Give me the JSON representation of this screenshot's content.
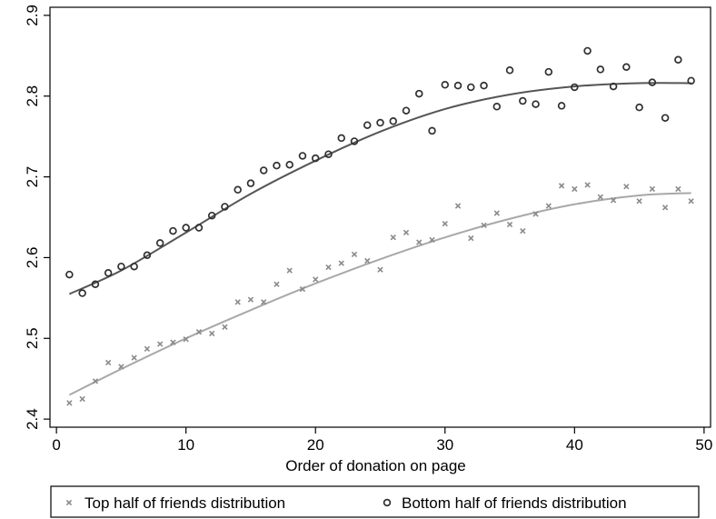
{
  "chart_data": {
    "type": "scatter",
    "xlabel": "Order of donation on page",
    "ylabel": "",
    "xlim": [
      -0.5,
      50.5
    ],
    "ylim": [
      2.39,
      2.91
    ],
    "x_ticks": [
      0,
      10,
      20,
      30,
      40,
      50
    ],
    "y_ticks": [
      2.4,
      2.5,
      2.6,
      2.7,
      2.8,
      2.9
    ],
    "x_tick_labels": [
      "0",
      "10",
      "20",
      "30",
      "40",
      "50"
    ],
    "y_tick_labels": [
      "2.4",
      "2.5",
      "2.6",
      "2.7",
      "2.8",
      "2.9"
    ],
    "grid": false,
    "legend_position": "bottom",
    "series": [
      {
        "name": "Top half of friends distribution",
        "marker": "x",
        "color": "#8a8a8a",
        "fit_color": "#a8a8a8",
        "x": [
          1,
          2,
          3,
          4,
          5,
          6,
          7,
          8,
          9,
          10,
          11,
          12,
          13,
          14,
          15,
          16,
          17,
          18,
          19,
          20,
          21,
          22,
          23,
          24,
          25,
          26,
          27,
          28,
          29,
          30,
          31,
          32,
          33,
          34,
          35,
          36,
          37,
          38,
          39,
          40,
          41,
          42,
          43,
          44,
          45,
          46,
          47,
          48,
          49
        ],
        "values": [
          2.42,
          2.425,
          2.447,
          2.47,
          2.465,
          2.476,
          2.487,
          2.493,
          2.495,
          2.499,
          2.508,
          2.506,
          2.514,
          2.545,
          2.548,
          2.545,
          2.567,
          2.584,
          2.561,
          2.573,
          2.588,
          2.593,
          2.604,
          2.596,
          2.585,
          2.625,
          2.631,
          2.619,
          2.622,
          2.642,
          2.664,
          2.624,
          2.64,
          2.655,
          2.641,
          2.633,
          2.654,
          2.664,
          2.689,
          2.685,
          2.69,
          2.675,
          2.671,
          2.688,
          2.67,
          2.685,
          2.662,
          2.685,
          2.67
        ],
        "fit_x": [
          1,
          5,
          10,
          15,
          20,
          25,
          30,
          35,
          40,
          45,
          49
        ],
        "fit_values": [
          2.43,
          2.462,
          2.5,
          2.535,
          2.568,
          2.598,
          2.625,
          2.648,
          2.666,
          2.677,
          2.68
        ]
      },
      {
        "name": "Bottom half of friends distribution",
        "marker": "o",
        "color": "#303030",
        "fit_color": "#555555",
        "x": [
          1,
          2,
          3,
          4,
          5,
          6,
          7,
          8,
          9,
          10,
          11,
          12,
          13,
          14,
          15,
          16,
          17,
          18,
          19,
          20,
          21,
          22,
          23,
          24,
          25,
          26,
          27,
          28,
          29,
          30,
          31,
          32,
          33,
          34,
          35,
          36,
          37,
          38,
          39,
          40,
          41,
          42,
          43,
          44,
          45,
          46,
          47,
          48,
          49
        ],
        "values": [
          2.579,
          2.556,
          2.567,
          2.581,
          2.589,
          2.589,
          2.603,
          2.618,
          2.633,
          2.637,
          2.637,
          2.652,
          2.663,
          2.684,
          2.692,
          2.708,
          2.714,
          2.715,
          2.726,
          2.723,
          2.728,
          2.748,
          2.744,
          2.764,
          2.767,
          2.769,
          2.782,
          2.803,
          2.757,
          2.814,
          2.813,
          2.811,
          2.813,
          2.787,
          2.832,
          2.794,
          2.79,
          2.83,
          2.788,
          2.811,
          2.856,
          2.833,
          2.812,
          2.836,
          2.786,
          2.817,
          2.773,
          2.845,
          2.819
        ],
        "fit_x": [
          1,
          5,
          10,
          15,
          20,
          25,
          30,
          35,
          40,
          45,
          49
        ],
        "fit_values": [
          2.555,
          2.584,
          2.631,
          2.679,
          2.72,
          2.756,
          2.784,
          2.802,
          2.812,
          2.816,
          2.816
        ]
      }
    ]
  }
}
